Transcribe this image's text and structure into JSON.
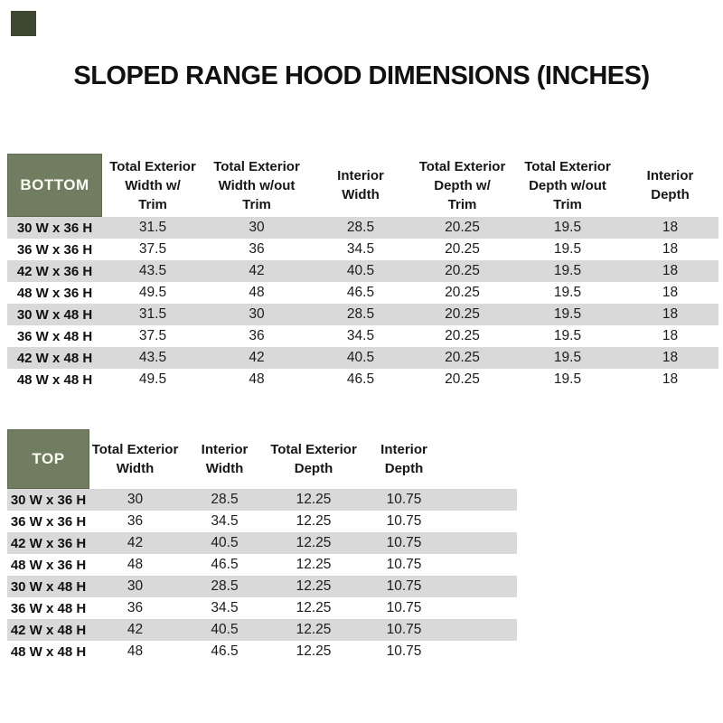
{
  "title": "SLOPED RANGE HOOD DIMENSIONS (INCHES)",
  "colors": {
    "header_green": "#717d60",
    "stripe_gray": "#d9d9d9",
    "swatch_dark": "#3f4931",
    "text": "#1f1f1f"
  },
  "chart_data": [
    {
      "type": "table",
      "title": "BOTTOM",
      "columns": [
        "Total Exterior\nWidth w/\nTrim",
        "Total Exterior\nWidth w/out\nTrim",
        "Interior\nWidth",
        "Total Exterior\nDepth w/\nTrim",
        "Total Exterior\nDepth w/out\nTrim",
        "Interior\nDepth"
      ],
      "rows": [
        {
          "size": "30 W x 36 H",
          "values": [
            "31.5",
            "30",
            "28.5",
            "20.25",
            "19.5",
            "18"
          ]
        },
        {
          "size": "36 W x 36 H",
          "values": [
            "37.5",
            "36",
            "34.5",
            "20.25",
            "19.5",
            "18"
          ]
        },
        {
          "size": "42 W x 36 H",
          "values": [
            "43.5",
            "42",
            "40.5",
            "20.25",
            "19.5",
            "18"
          ]
        },
        {
          "size": "48 W x 36 H",
          "values": [
            "49.5",
            "48",
            "46.5",
            "20.25",
            "19.5",
            "18"
          ]
        },
        {
          "size": "30 W x 48 H",
          "values": [
            "31.5",
            "30",
            "28.5",
            "20.25",
            "19.5",
            "18"
          ]
        },
        {
          "size": "36 W x 48 H",
          "values": [
            "37.5",
            "36",
            "34.5",
            "20.25",
            "19.5",
            "18"
          ]
        },
        {
          "size": "42 W x 48 H",
          "values": [
            "43.5",
            "42",
            "40.5",
            "20.25",
            "19.5",
            "18"
          ]
        },
        {
          "size": "48 W x 48 H",
          "values": [
            "49.5",
            "48",
            "46.5",
            "20.25",
            "19.5",
            "18"
          ]
        }
      ]
    },
    {
      "type": "table",
      "title": "TOP",
      "columns": [
        "Total Exterior\nWidth",
        "Interior\nWidth",
        "Total Exterior\nDepth",
        "Interior\nDepth"
      ],
      "rows": [
        {
          "size": "30 W x 36 H",
          "values": [
            "30",
            "28.5",
            "12.25",
            "10.75"
          ]
        },
        {
          "size": "36 W x 36 H",
          "values": [
            "36",
            "34.5",
            "12.25",
            "10.75"
          ]
        },
        {
          "size": "42 W x 36 H",
          "values": [
            "42",
            "40.5",
            "12.25",
            "10.75"
          ]
        },
        {
          "size": "48 W x 36 H",
          "values": [
            "48",
            "46.5",
            "12.25",
            "10.75"
          ]
        },
        {
          "size": "30 W x 48 H",
          "values": [
            "30",
            "28.5",
            "12.25",
            "10.75"
          ]
        },
        {
          "size": "36 W x 48 H",
          "values": [
            "36",
            "34.5",
            "12.25",
            "10.75"
          ]
        },
        {
          "size": "42 W x 48 H",
          "values": [
            "42",
            "40.5",
            "12.25",
            "10.75"
          ]
        },
        {
          "size": "48 W x 48 H",
          "values": [
            "48",
            "46.5",
            "12.25",
            "10.75"
          ]
        }
      ]
    }
  ]
}
